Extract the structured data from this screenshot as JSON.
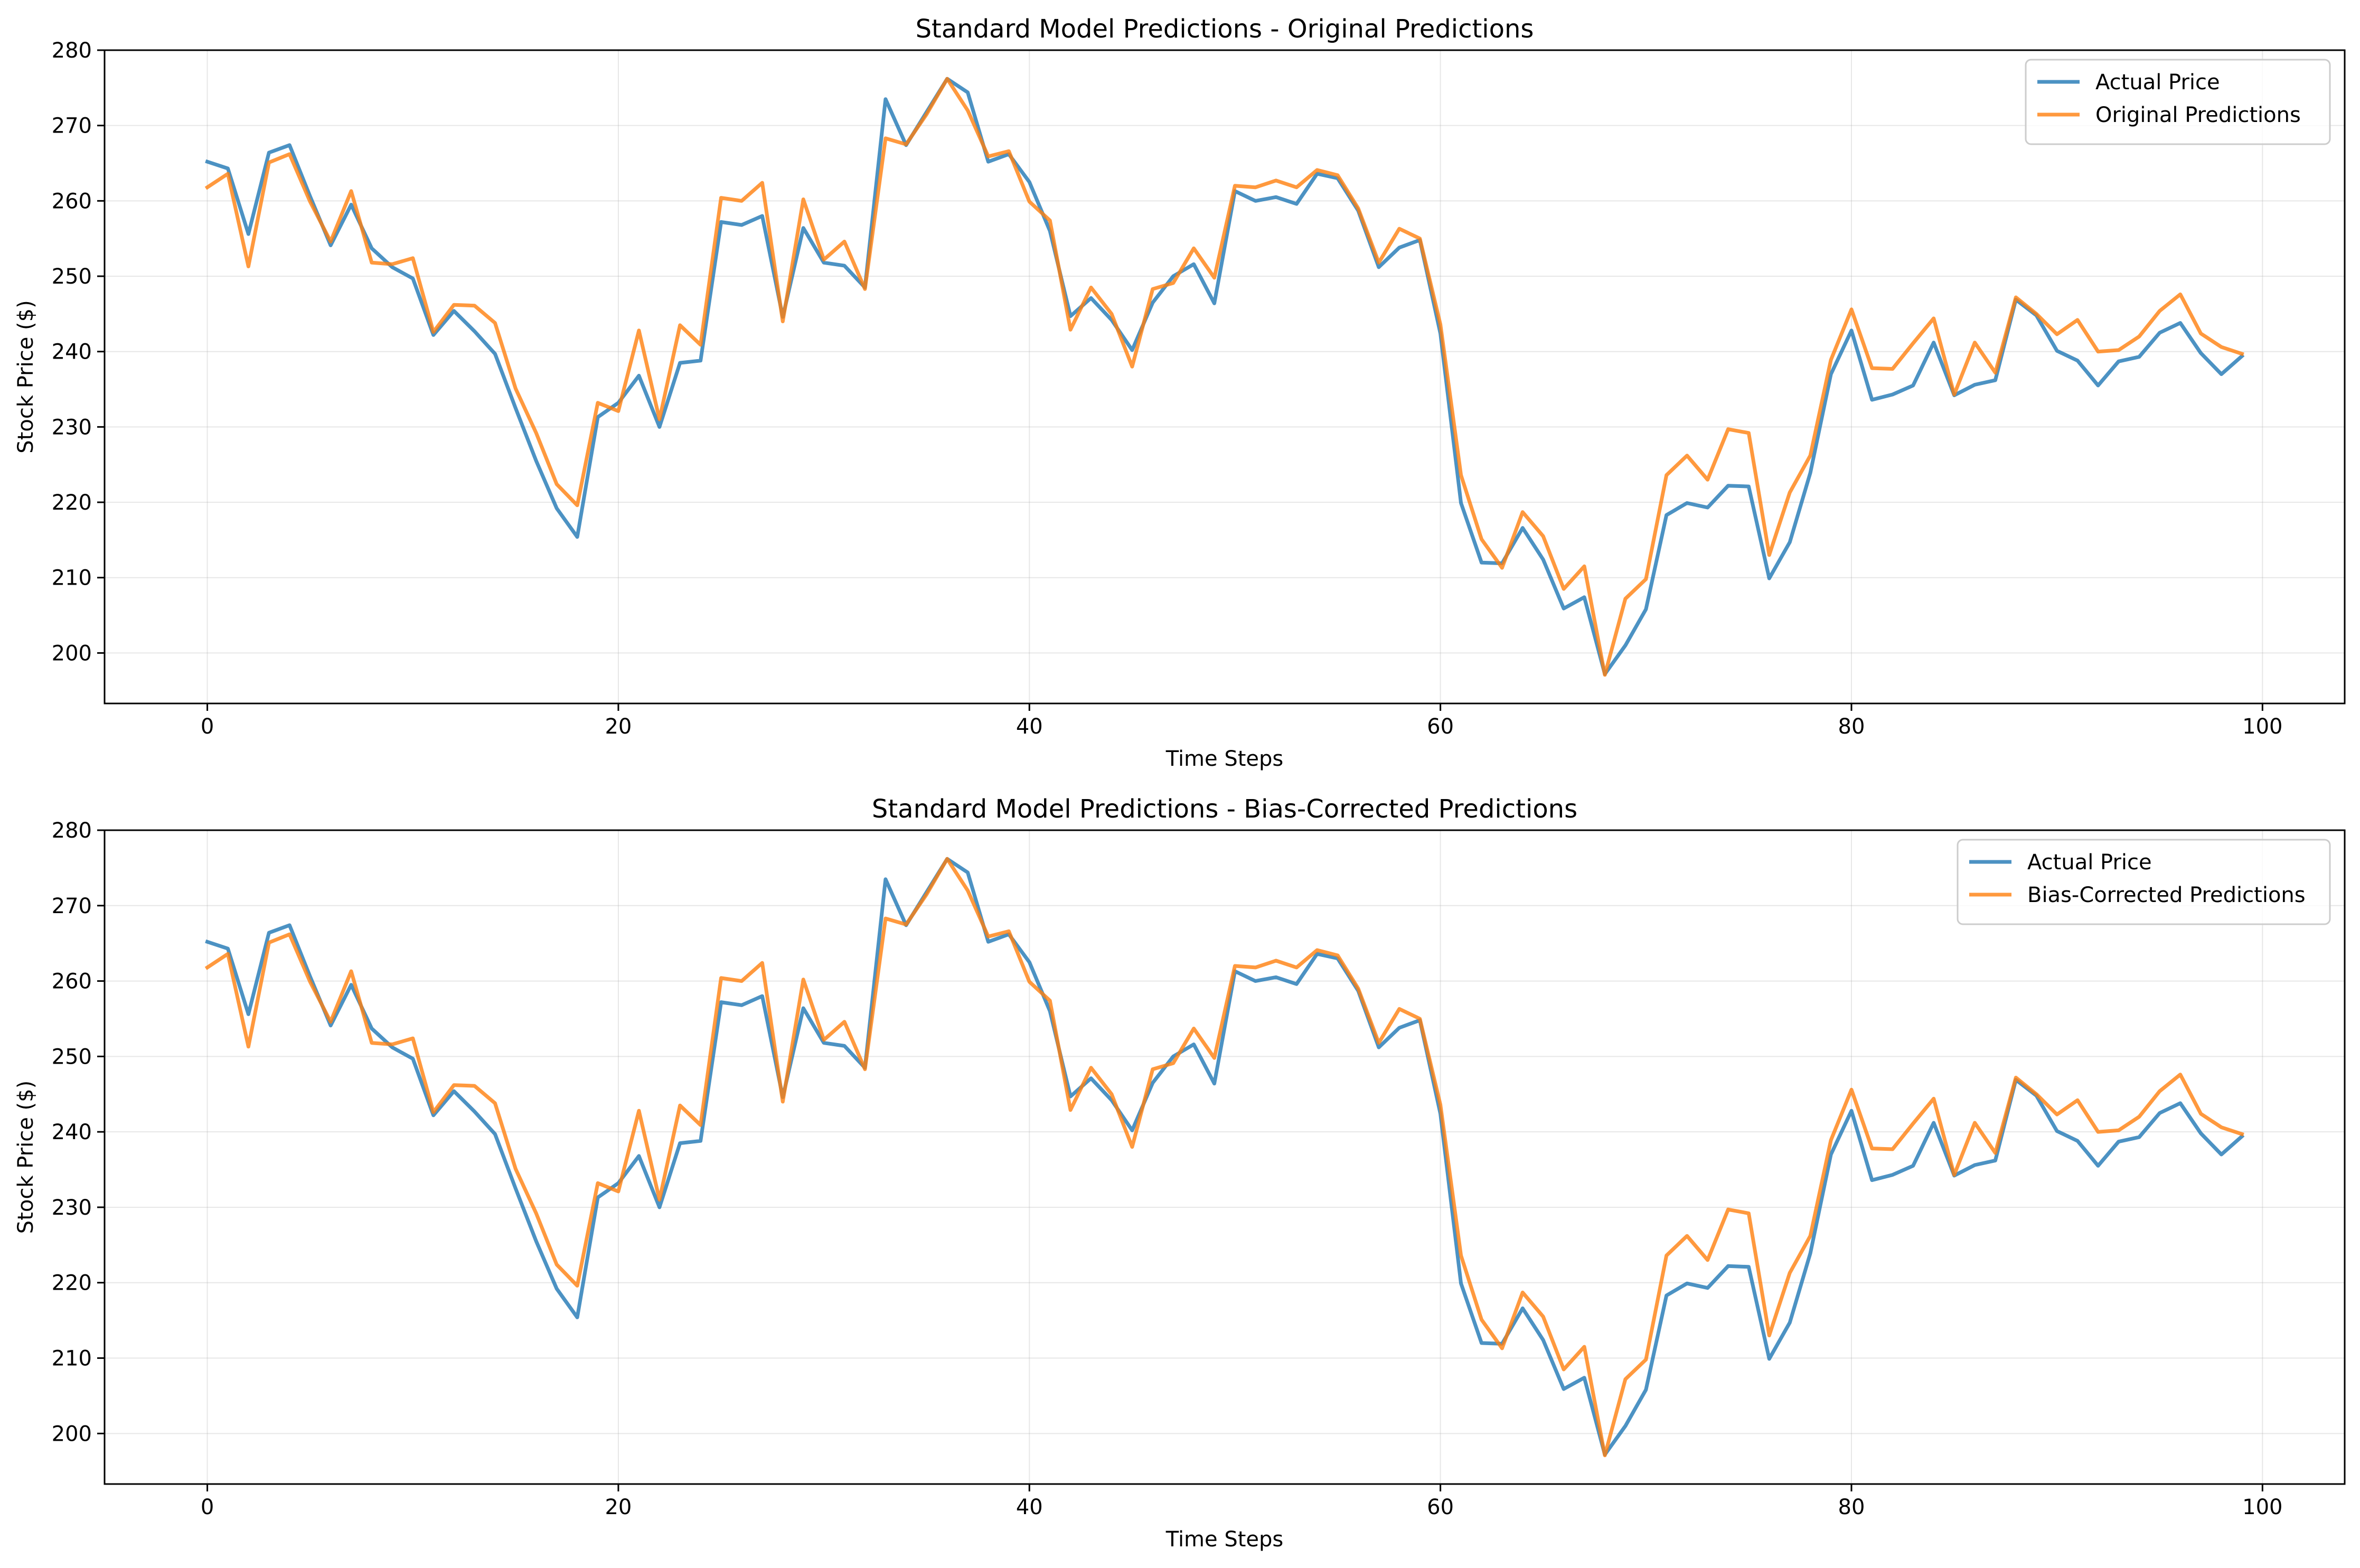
{
  "colors": {
    "actual": "#1f77b4",
    "predicted": "#ff7f0e",
    "grid": "#b0b0b0",
    "axis": "#000000"
  },
  "chart_data": [
    {
      "type": "line",
      "title": "Standard Model Predictions - Original Predictions",
      "xlabel": "Time Steps",
      "ylabel": "Stock Price ($)",
      "xlim": [
        -5,
        104
      ],
      "ylim": [
        193.3,
        280
      ],
      "xticks": [
        "0",
        "20",
        "40",
        "60",
        "80",
        "100"
      ],
      "yticks": [
        "200",
        "210",
        "220",
        "230",
        "240",
        "250",
        "260",
        "270",
        "280"
      ],
      "grid": true,
      "legend_position": "top-right",
      "x": [
        0,
        1,
        2,
        3,
        4,
        5,
        6,
        7,
        8,
        9,
        10,
        11,
        12,
        13,
        14,
        15,
        16,
        17,
        18,
        19,
        20,
        21,
        22,
        23,
        24,
        25,
        26,
        27,
        28,
        29,
        30,
        31,
        32,
        33,
        34,
        35,
        36,
        37,
        38,
        39,
        40,
        41,
        42,
        43,
        44,
        45,
        46,
        47,
        48,
        49,
        50,
        51,
        52,
        53,
        54,
        55,
        56,
        57,
        58,
        59,
        60,
        61,
        62,
        63,
        64,
        65,
        66,
        67,
        68,
        69,
        70,
        71,
        72,
        73,
        74,
        75,
        76,
        77,
        78,
        79,
        80,
        81,
        82,
        83,
        84,
        85,
        86,
        87,
        88,
        89,
        90,
        91,
        92,
        93,
        94,
        95,
        96,
        97,
        98,
        99
      ],
      "series": [
        {
          "name": "Actual Price",
          "values": [
            265.2,
            264.3,
            255.6,
            266.4,
            267.4,
            260.6,
            254.1,
            259.5,
            253.7,
            251.2,
            249.7,
            242.2,
            245.4,
            242.7,
            239.7,
            232.5,
            225.5,
            219.2,
            215.4,
            231.3,
            233.2,
            236.8,
            230.0,
            238.5,
            238.8,
            257.2,
            256.8,
            258.0,
            244.6,
            256.4,
            251.8,
            251.4,
            248.5,
            273.5,
            267.4,
            271.8,
            276.2,
            274.4,
            265.2,
            266.2,
            262.5,
            256.0,
            244.7,
            247.1,
            244.2,
            240.2,
            246.5,
            250.0,
            251.6,
            246.4,
            261.3,
            260.0,
            260.5,
            259.6,
            263.6,
            263.0,
            258.7,
            251.2,
            253.8,
            254.8,
            242.4,
            219.9,
            212.0,
            211.9,
            216.6,
            212.4,
            205.9,
            207.4,
            197.2,
            201.0,
            205.8,
            218.3,
            219.9,
            219.3,
            222.2,
            222.1,
            209.9,
            214.7,
            223.9,
            237.0,
            242.8,
            233.6,
            234.3,
            235.5,
            241.2,
            234.2,
            235.6,
            236.2,
            246.9,
            244.8,
            240.1,
            238.8,
            235.5,
            238.7,
            239.3,
            242.5,
            243.8,
            239.8,
            237.0,
            239.4
          ]
        },
        {
          "name": "Original Predictions",
          "values": [
            261.8,
            263.6,
            251.3,
            265.1,
            266.2,
            259.9,
            254.6,
            261.3,
            251.8,
            251.6,
            252.4,
            242.6,
            246.2,
            246.1,
            243.8,
            235.1,
            229.2,
            222.4,
            219.6,
            233.2,
            232.1,
            242.8,
            231.0,
            243.5,
            240.9,
            260.4,
            260.0,
            262.4,
            244.0,
            260.2,
            252.2,
            254.6,
            248.3,
            268.3,
            267.5,
            271.5,
            276.2,
            272.0,
            265.9,
            266.6,
            259.9,
            257.4,
            242.9,
            248.5,
            245.0,
            238.0,
            248.3,
            249.1,
            253.7,
            249.8,
            262.0,
            261.8,
            262.7,
            261.8,
            264.1,
            263.4,
            259.0,
            251.8,
            256.3,
            255.0,
            243.6,
            223.6,
            215.1,
            211.3,
            218.7,
            215.5,
            208.5,
            211.5,
            197.1,
            207.2,
            209.8,
            223.6,
            226.2,
            223.0,
            229.7,
            229.2,
            213.0,
            221.3,
            226.2,
            238.9,
            245.6,
            237.8,
            237.7,
            241.1,
            244.4,
            234.3,
            241.2,
            237.2,
            247.2,
            245.0,
            242.3,
            244.2,
            240.0,
            240.2,
            242.0,
            245.4,
            247.6,
            242.4,
            240.6,
            239.7
          ]
        }
      ]
    },
    {
      "type": "line",
      "title": "Standard Model Predictions - Bias-Corrected Predictions",
      "xlabel": "Time Steps",
      "ylabel": "Stock Price ($)",
      "xlim": [
        -5,
        104
      ],
      "ylim": [
        193.3,
        280
      ],
      "xticks": [
        "0",
        "20",
        "40",
        "60",
        "80",
        "100"
      ],
      "yticks": [
        "200",
        "210",
        "220",
        "230",
        "240",
        "250",
        "260",
        "270",
        "280"
      ],
      "grid": true,
      "legend_position": "top-right",
      "x": [
        0,
        1,
        2,
        3,
        4,
        5,
        6,
        7,
        8,
        9,
        10,
        11,
        12,
        13,
        14,
        15,
        16,
        17,
        18,
        19,
        20,
        21,
        22,
        23,
        24,
        25,
        26,
        27,
        28,
        29,
        30,
        31,
        32,
        33,
        34,
        35,
        36,
        37,
        38,
        39,
        40,
        41,
        42,
        43,
        44,
        45,
        46,
        47,
        48,
        49,
        50,
        51,
        52,
        53,
        54,
        55,
        56,
        57,
        58,
        59,
        60,
        61,
        62,
        63,
        64,
        65,
        66,
        67,
        68,
        69,
        70,
        71,
        72,
        73,
        74,
        75,
        76,
        77,
        78,
        79,
        80,
        81,
        82,
        83,
        84,
        85,
        86,
        87,
        88,
        89,
        90,
        91,
        92,
        93,
        94,
        95,
        96,
        97,
        98,
        99
      ],
      "series": [
        {
          "name": "Actual Price",
          "values": [
            265.2,
            264.3,
            255.6,
            266.4,
            267.4,
            260.6,
            254.1,
            259.5,
            253.7,
            251.2,
            249.7,
            242.2,
            245.4,
            242.7,
            239.7,
            232.5,
            225.5,
            219.2,
            215.4,
            231.3,
            233.2,
            236.8,
            230.0,
            238.5,
            238.8,
            257.2,
            256.8,
            258.0,
            244.6,
            256.4,
            251.8,
            251.4,
            248.5,
            273.5,
            267.4,
            271.8,
            276.2,
            274.4,
            265.2,
            266.2,
            262.5,
            256.0,
            244.7,
            247.1,
            244.2,
            240.2,
            246.5,
            250.0,
            251.6,
            246.4,
            261.3,
            260.0,
            260.5,
            259.6,
            263.6,
            263.0,
            258.7,
            251.2,
            253.8,
            254.8,
            242.4,
            219.9,
            212.0,
            211.9,
            216.6,
            212.4,
            205.9,
            207.4,
            197.2,
            201.0,
            205.8,
            218.3,
            219.9,
            219.3,
            222.2,
            222.1,
            209.9,
            214.7,
            223.9,
            237.0,
            242.8,
            233.6,
            234.3,
            235.5,
            241.2,
            234.2,
            235.6,
            236.2,
            246.9,
            244.8,
            240.1,
            238.8,
            235.5,
            238.7,
            239.3,
            242.5,
            243.8,
            239.8,
            237.0,
            239.4
          ]
        },
        {
          "name": "Bias-Corrected Predictions",
          "values": [
            261.8,
            263.6,
            251.3,
            265.1,
            266.2,
            259.9,
            254.6,
            261.3,
            251.8,
            251.6,
            252.4,
            242.6,
            246.2,
            246.1,
            243.8,
            235.1,
            229.2,
            222.4,
            219.6,
            233.2,
            232.1,
            242.8,
            231.0,
            243.5,
            240.9,
            260.4,
            260.0,
            262.4,
            244.0,
            260.2,
            252.2,
            254.6,
            248.3,
            268.3,
            267.5,
            271.5,
            276.2,
            272.0,
            265.9,
            266.6,
            259.9,
            257.4,
            242.9,
            248.5,
            245.0,
            238.0,
            248.3,
            249.1,
            253.7,
            249.8,
            262.0,
            261.8,
            262.7,
            261.8,
            264.1,
            263.4,
            259.0,
            251.8,
            256.3,
            255.0,
            243.6,
            223.6,
            215.1,
            211.3,
            218.7,
            215.5,
            208.5,
            211.5,
            197.1,
            207.2,
            209.8,
            223.6,
            226.2,
            223.0,
            229.7,
            229.2,
            213.0,
            221.3,
            226.2,
            238.9,
            245.6,
            237.8,
            237.7,
            241.1,
            244.4,
            234.3,
            241.2,
            237.2,
            247.2,
            245.0,
            242.3,
            244.2,
            240.0,
            240.2,
            242.0,
            245.4,
            247.6,
            242.4,
            240.6,
            239.7
          ]
        }
      ]
    }
  ]
}
